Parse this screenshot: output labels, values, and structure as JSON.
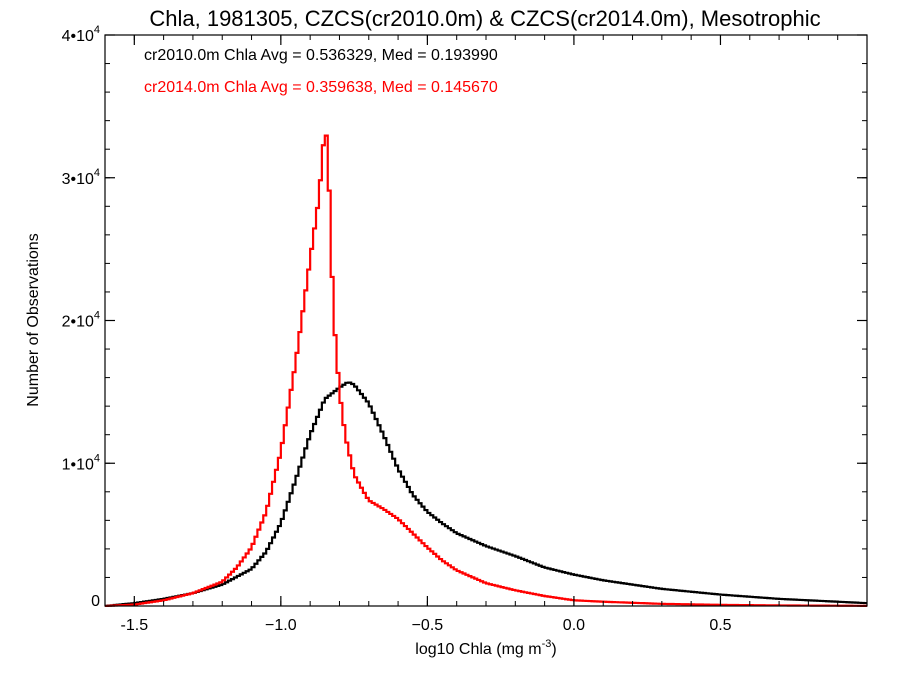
{
  "chart_data": {
    "type": "line",
    "step": true,
    "title": "Chla, 1981305, CZCS(cr2010.0m) & CZCS(cr2014.0m), Mesotrophic",
    "xlabel": {
      "base": "log10 Chla (mg m",
      "sup": "-3",
      "tail": ")"
    },
    "ylabel": "Number of Observations",
    "xlim": [
      -1.6,
      1.0
    ],
    "ylim": [
      0,
      40000
    ],
    "x_ticks": [
      {
        "value": -1.5,
        "label": "-1.5"
      },
      {
        "value": -1.0,
        "label": "−1.0"
      },
      {
        "value": -0.5,
        "label": "−0.5"
      },
      {
        "value": 0.0,
        "label": "0.0"
      },
      {
        "value": 0.5,
        "label": "0.5"
      }
    ],
    "y_ticks": [
      {
        "value": 0,
        "label": "0",
        "sup": ""
      },
      {
        "value": 10000,
        "label": "1•10",
        "sup": "4"
      },
      {
        "value": 20000,
        "label": "2•10",
        "sup": "4"
      },
      {
        "value": 30000,
        "label": "3•10",
        "sup": "4"
      },
      {
        "value": 40000,
        "label": "4•10",
        "sup": "4"
      }
    ],
    "annotations": [
      {
        "text": "cr2010.0m Chla Avg = 0.536329, Med = 0.193990",
        "color": "#000000"
      },
      {
        "text": "cr2014.0m Chla Avg = 0.359638, Med = 0.145670",
        "color": "#ff0000"
      }
    ],
    "series": [
      {
        "color": "#000000",
        "x": [
          -1.6,
          -1.5,
          -1.4,
          -1.3,
          -1.2,
          -1.1,
          -1.05,
          -1.0,
          -0.95,
          -0.9,
          -0.85,
          -0.8,
          -0.77,
          -0.75,
          -0.7,
          -0.65,
          -0.6,
          -0.55,
          -0.5,
          -0.45,
          -0.4,
          -0.3,
          -0.2,
          -0.1,
          0.0,
          0.1,
          0.2,
          0.3,
          0.5,
          0.7,
          0.9,
          1.0
        ],
        "y": [
          0,
          200,
          500,
          900,
          1500,
          2600,
          3800,
          5800,
          8800,
          12000,
          14500,
          15300,
          15700,
          15500,
          14200,
          12000,
          9600,
          7800,
          6600,
          5800,
          5100,
          4200,
          3500,
          2700,
          2200,
          1800,
          1500,
          1200,
          800,
          500,
          300,
          200
        ]
      },
      {
        "color": "#ff0000",
        "x": [
          -1.6,
          -1.5,
          -1.4,
          -1.3,
          -1.2,
          -1.15,
          -1.1,
          -1.05,
          -1.0,
          -0.95,
          -0.9,
          -0.87,
          -0.85,
          -0.84,
          -0.83,
          -0.82,
          -0.8,
          -0.78,
          -0.75,
          -0.72,
          -0.7,
          -0.65,
          -0.6,
          -0.55,
          -0.5,
          -0.45,
          -0.4,
          -0.3,
          -0.2,
          -0.1,
          0.0,
          0.1,
          0.3,
          0.5,
          0.7,
          1.0
        ],
        "y": [
          0,
          100,
          400,
          900,
          1700,
          2700,
          4100,
          6600,
          10800,
          17000,
          24300,
          28600,
          33500,
          32400,
          25800,
          20300,
          15000,
          11900,
          9200,
          8100,
          7400,
          6800,
          6100,
          5100,
          4100,
          3200,
          2500,
          1600,
          1100,
          700,
          400,
          300,
          150,
          80,
          40,
          10
        ]
      }
    ]
  }
}
